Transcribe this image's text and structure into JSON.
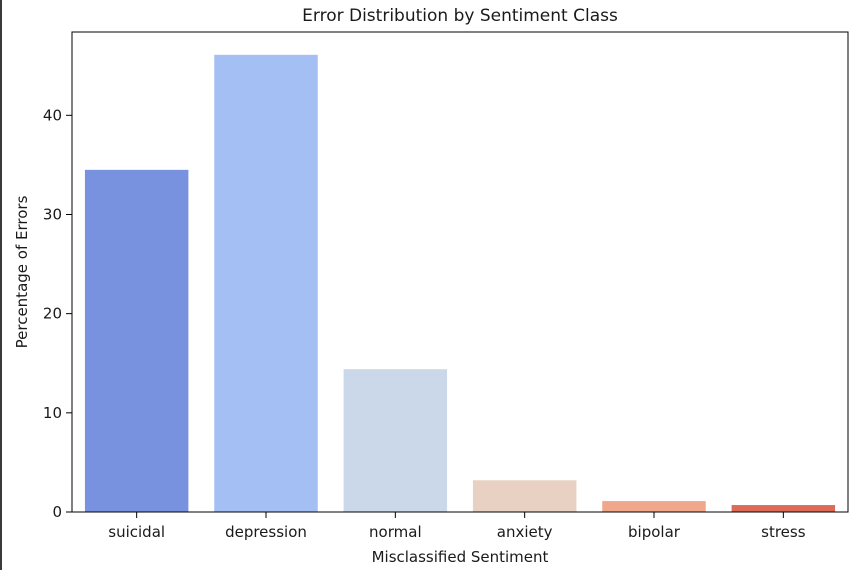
{
  "chart_data": {
    "type": "bar",
    "title": "Error Distribution by Sentiment Class",
    "xlabel": "Misclassified Sentiment",
    "ylabel": "Percentage of Errors",
    "categories": [
      "suicidal",
      "depression",
      "normal",
      "anxiety",
      "bipolar",
      "stress"
    ],
    "values": [
      34.5,
      46.1,
      14.4,
      3.2,
      1.1,
      0.7
    ],
    "colors": [
      "#7892df",
      "#a3bff4",
      "#cbd8e9",
      "#e8d1c3",
      "#f0a78b",
      "#dc6a56"
    ],
    "ylim": [
      0,
      48.4
    ],
    "yticks": [
      0,
      10,
      20,
      30,
      40
    ],
    "grid": false,
    "legend": "none"
  }
}
